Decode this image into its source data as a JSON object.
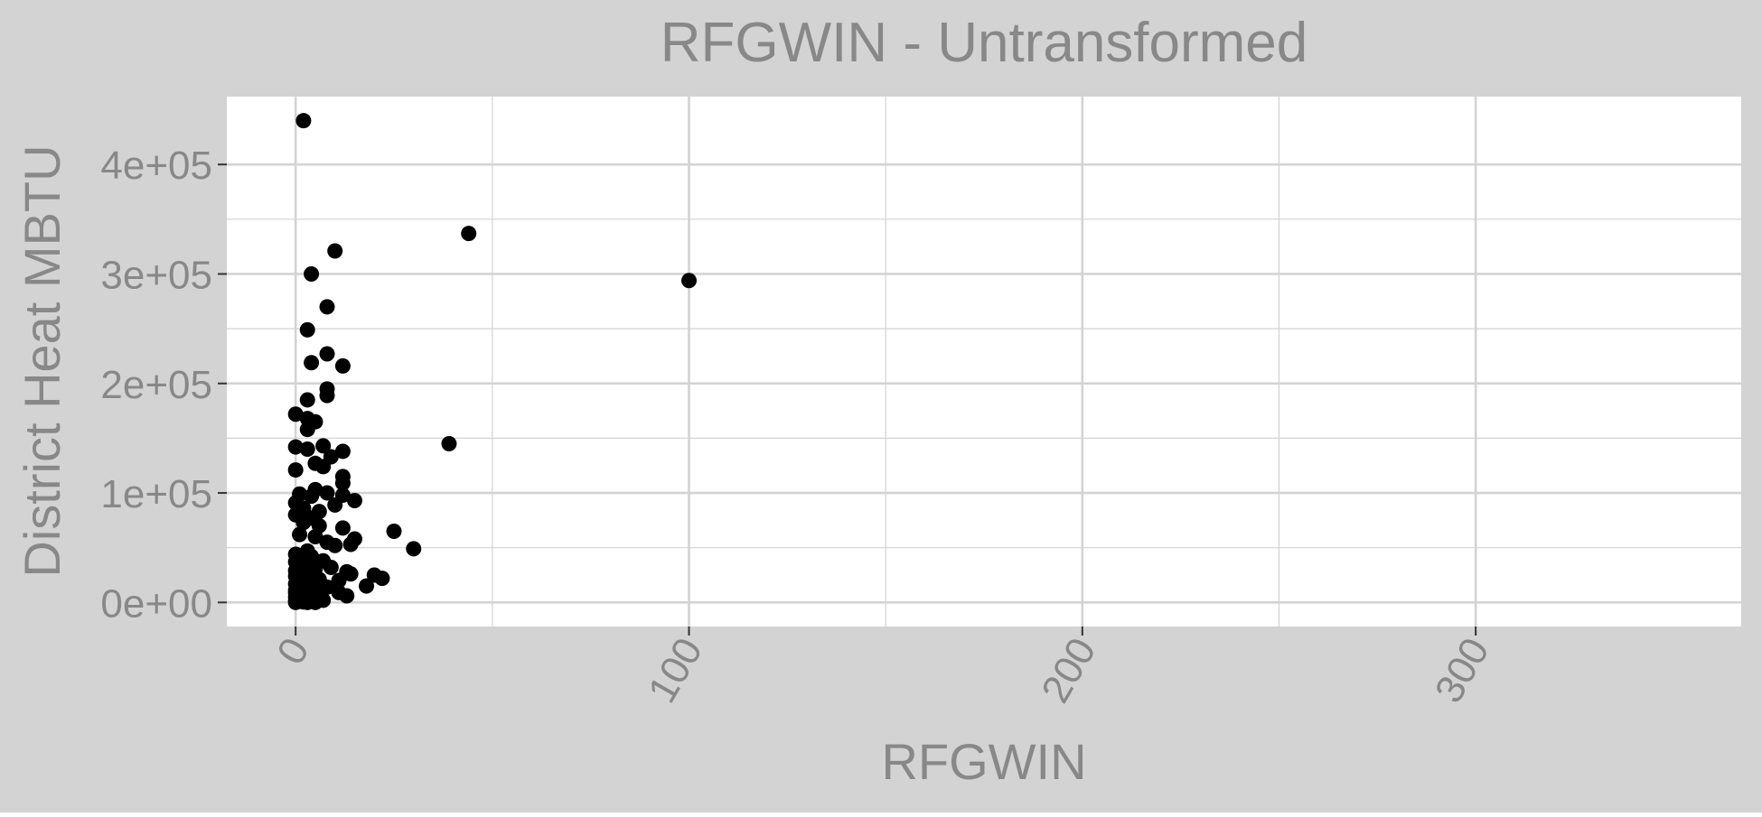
{
  "colors": {
    "background": "#d3d3d3",
    "panel": "#ffffff",
    "grid": "#d3d3d3",
    "text": "#888888",
    "tick": "#333333",
    "point": "#000000"
  },
  "chart_data": {
    "type": "scatter",
    "title": "RFGWIN - Untransformed",
    "xlabel": "RFGWIN",
    "ylabel": "District Heat MBTU",
    "xlim": [
      -17.5,
      367.5
    ],
    "ylim": [
      -22000,
      462000
    ],
    "x_ticks": [
      0,
      100,
      200,
      300
    ],
    "x_tick_labels": [
      "0",
      "100",
      "200",
      "300"
    ],
    "y_ticks": [
      0,
      100000,
      200000,
      300000,
      400000
    ],
    "y_tick_labels": [
      "0e+00",
      "1e+05",
      "2e+05",
      "3e+05",
      "4e+05"
    ],
    "grid": true,
    "legend": "none",
    "series": [
      {
        "points": [
          [
            2,
            440000
          ],
          [
            44,
            337000
          ],
          [
            100,
            294000
          ],
          [
            10,
            321000
          ],
          [
            4,
            300000
          ],
          [
            8,
            270000
          ],
          [
            3,
            249000
          ],
          [
            8,
            227000
          ],
          [
            4,
            219000
          ],
          [
            12,
            216000
          ],
          [
            8,
            195000
          ],
          [
            8,
            189000
          ],
          [
            3,
            185000
          ],
          [
            0,
            172000
          ],
          [
            3,
            168000
          ],
          [
            5,
            165000
          ],
          [
            3,
            158000
          ],
          [
            39,
            145000
          ],
          [
            0,
            142000
          ],
          [
            3,
            140000
          ],
          [
            7,
            143000
          ],
          [
            12,
            138000
          ],
          [
            9,
            133000
          ],
          [
            5,
            127000
          ],
          [
            7,
            124000
          ],
          [
            0,
            121000
          ],
          [
            12,
            115000
          ],
          [
            12,
            109000
          ],
          [
            5,
            103000
          ],
          [
            8,
            100000
          ],
          [
            1,
            99000
          ],
          [
            4,
            97000
          ],
          [
            12,
            98000
          ],
          [
            15,
            93000
          ],
          [
            0,
            91000
          ],
          [
            10,
            89000
          ],
          [
            2,
            86000
          ],
          [
            6,
            83000
          ],
          [
            0,
            80000
          ],
          [
            4,
            77000
          ],
          [
            2,
            73000
          ],
          [
            6,
            70000
          ],
          [
            12,
            68000
          ],
          [
            25,
            65000
          ],
          [
            1,
            62000
          ],
          [
            5,
            60000
          ],
          [
            15,
            58000
          ],
          [
            8,
            55000
          ],
          [
            14,
            53000
          ],
          [
            30,
            49000
          ],
          [
            10,
            52000
          ],
          [
            3,
            47000
          ],
          [
            0,
            44000
          ],
          [
            1,
            41000
          ],
          [
            4,
            42000
          ],
          [
            7,
            38000
          ],
          [
            2,
            36000
          ],
          [
            1,
            33000
          ],
          [
            5,
            31000
          ],
          [
            9,
            32000
          ],
          [
            0,
            29000
          ],
          [
            3,
            27000
          ],
          [
            13,
            28000
          ],
          [
            14,
            26000
          ],
          [
            20,
            25000
          ],
          [
            22,
            22000
          ],
          [
            0,
            24000
          ],
          [
            2,
            22000
          ],
          [
            6,
            21000
          ],
          [
            11,
            20000
          ],
          [
            1,
            19000
          ],
          [
            3,
            18000
          ],
          [
            0,
            17000
          ],
          [
            4,
            16000
          ],
          [
            18,
            15000
          ],
          [
            8,
            14000
          ],
          [
            1,
            13000
          ],
          [
            2,
            12000
          ],
          [
            0,
            11000
          ],
          [
            5,
            10000
          ],
          [
            11,
            9000
          ],
          [
            1,
            8000
          ],
          [
            3,
            7000
          ],
          [
            13,
            6000
          ],
          [
            0,
            5000
          ],
          [
            2,
            4000
          ],
          [
            4,
            3000
          ],
          [
            7,
            2000
          ],
          [
            0,
            1500
          ],
          [
            1,
            1000
          ],
          [
            2,
            500
          ],
          [
            0,
            0
          ],
          [
            3,
            0
          ],
          [
            5,
            0
          ],
          [
            1,
            2500
          ],
          [
            0,
            8500
          ],
          [
            2,
            15500
          ],
          [
            1,
            20500
          ],
          [
            4,
            34000
          ],
          [
            0,
            37000
          ]
        ]
      }
    ]
  }
}
